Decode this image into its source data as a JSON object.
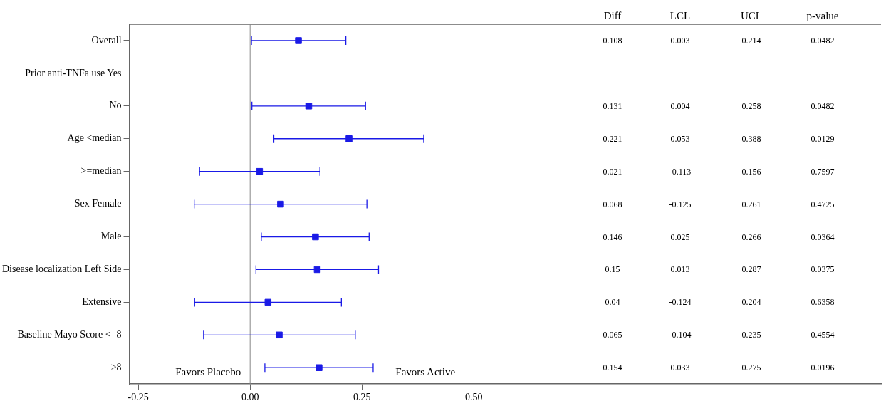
{
  "chart_data": [
    {
      "type": "scatter",
      "orientation": "horizontal",
      "categories": [
        "Overall",
        "Prior anti-TNFa use Yes",
        "No",
        "Age <median",
        ">=median",
        "Sex Female",
        "Male",
        "Disease localization Left Side",
        "Extensive",
        "Baseline Mayo Score <=8",
        ">8"
      ],
      "series": [
        {
          "color": "#1a1ae6",
          "values": [
            0.108,
            null,
            0.131,
            0.221,
            0.021,
            0.068,
            0.146,
            0.15,
            0.04,
            0.065,
            0.154
          ],
          "errors": [
            [
              0.003,
              0.214
            ],
            null,
            [
              0.004,
              0.258
            ],
            [
              0.053,
              0.388
            ],
            [
              -0.113,
              0.156
            ],
            [
              -0.125,
              0.261
            ],
            [
              0.025,
              0.266
            ],
            [
              0.013,
              0.287
            ],
            [
              -0.124,
              0.204
            ],
            [
              -0.104,
              0.235
            ],
            [
              0.033,
              0.275
            ]
          ]
        }
      ],
      "marker": "square",
      "grid": false,
      "legend": false,
      "xlim": [
        -0.27,
        1.41
      ],
      "xticks": [
        {
          "value": -0.25,
          "label": "-0.25"
        },
        {
          "value": 0,
          "label": "0.00"
        },
        {
          "value": 0.25,
          "label": "0.25"
        },
        {
          "value": 0.5,
          "label": "0.50"
        }
      ],
      "ref_lines": [
        {
          "axis": "x",
          "value": 0,
          "color": "#888888"
        }
      ],
      "annotations": [
        "Favors Placebo",
        "Favors Active"
      ]
    },
    {
      "type": "other",
      "annotations": [
        "Diff",
        "LCL",
        "UCL",
        "p-value",
        "0.108",
        "0.003",
        "0.214",
        "0.0482",
        "0.131",
        "0.004",
        "0.258",
        "0.0482",
        "0.221",
        "0.053",
        "0.388",
        "0.0129",
        "0.021",
        "-0.113",
        "0.156",
        "0.7597",
        "0.068",
        "-0.125",
        "0.261",
        "0.4725",
        "0.146",
        "0.025",
        "0.266",
        "0.0364",
        "0.15",
        "0.013",
        "0.287",
        "0.0375",
        "0.04",
        "-0.124",
        "0.204",
        "0.6358",
        "0.065",
        "-0.104",
        "0.235",
        "0.4554",
        "0.154",
        "0.033",
        "0.275",
        "0.0196"
      ]
    }
  ]
}
